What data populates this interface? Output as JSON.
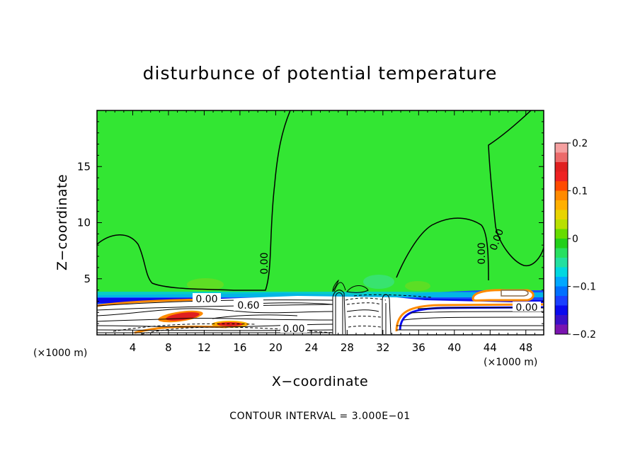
{
  "chart_data": {
    "type": "heatmap",
    "title": "disturbunce of potential temperature",
    "xlabel": "X−coordinate",
    "ylabel": "Z−coordinate",
    "x_unit": "(×1000 m)",
    "y_unit": "(×1000 m)",
    "xlim": [
      0,
      50
    ],
    "ylim": [
      0,
      20
    ],
    "x_ticks": [
      4,
      8,
      12,
      16,
      20,
      24,
      28,
      32,
      36,
      40,
      44,
      48
    ],
    "y_ticks": [
      5,
      10,
      15
    ],
    "contour_interval_text": "CONTOUR INTERVAL = 3.000E−01",
    "contour_labels": [
      {
        "text": "0.00",
        "x": 12.5,
        "z": 3.2
      },
      {
        "text": "0.60",
        "x": 17.2,
        "z": 2.6
      },
      {
        "text": "0.00",
        "x": 19.6,
        "z": 0.5
      },
      {
        "text": "0.00",
        "x": 19.0,
        "z": 6.3,
        "angle": -90
      },
      {
        "text": "0.00",
        "x": 43.2,
        "z": 7.0,
        "angle": -90
      },
      {
        "text": "0.00",
        "x": 45.0,
        "z": 8.5,
        "angle": -70
      },
      {
        "text": "0.00",
        "x": 48.8,
        "z": 2.5
      }
    ],
    "colorbar": {
      "range": [
        -0.2,
        0.2
      ],
      "tick_labels": [
        "0.2",
        "0.1",
        "0",
        "−0.1",
        "−0.2"
      ],
      "tick_values": [
        0.2,
        0.1,
        0,
        -0.1,
        -0.2
      ],
      "colors": [
        "#f5a0a0",
        "#ec6a6a",
        "#e02020",
        "#ee2222",
        "#ff4a00",
        "#ff8a00",
        "#ffb000",
        "#e8d400",
        "#b8e000",
        "#66dc00",
        "#22d01a",
        "#28e060",
        "#22e0a0",
        "#00d8e0",
        "#00a8ff",
        "#0070ff",
        "#1a40ff",
        "#0a0aee",
        "#3a10c8",
        "#7a14b0"
      ]
    },
    "background_color": "#33e633"
  }
}
